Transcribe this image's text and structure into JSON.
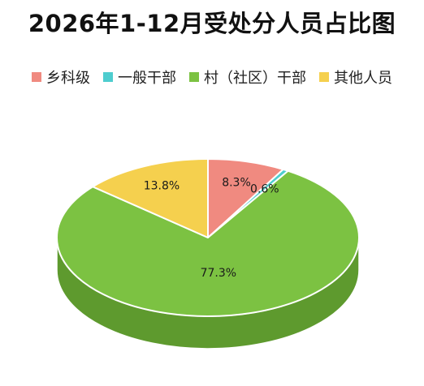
{
  "chart_data": {
    "type": "pie",
    "title": "2026年1-12月受处分人员占比图",
    "categories": [
      "乡科级",
      "一般干部",
      "村（社区）干部",
      "其他人员"
    ],
    "values": [
      8.3,
      0.6,
      77.3,
      13.8
    ],
    "value_labels": [
      "8.3%",
      "0.6%",
      "77.3%",
      "13.8%"
    ],
    "unit": "%",
    "colors": [
      "#f08a80",
      "#4ecdcf",
      "#7cc242",
      "#f5d04e"
    ],
    "side_colors": [
      "#c86a60",
      "#36a3a5",
      "#5e9a2e",
      "#c9a832"
    ],
    "legend_position": "top",
    "style": "3d"
  }
}
